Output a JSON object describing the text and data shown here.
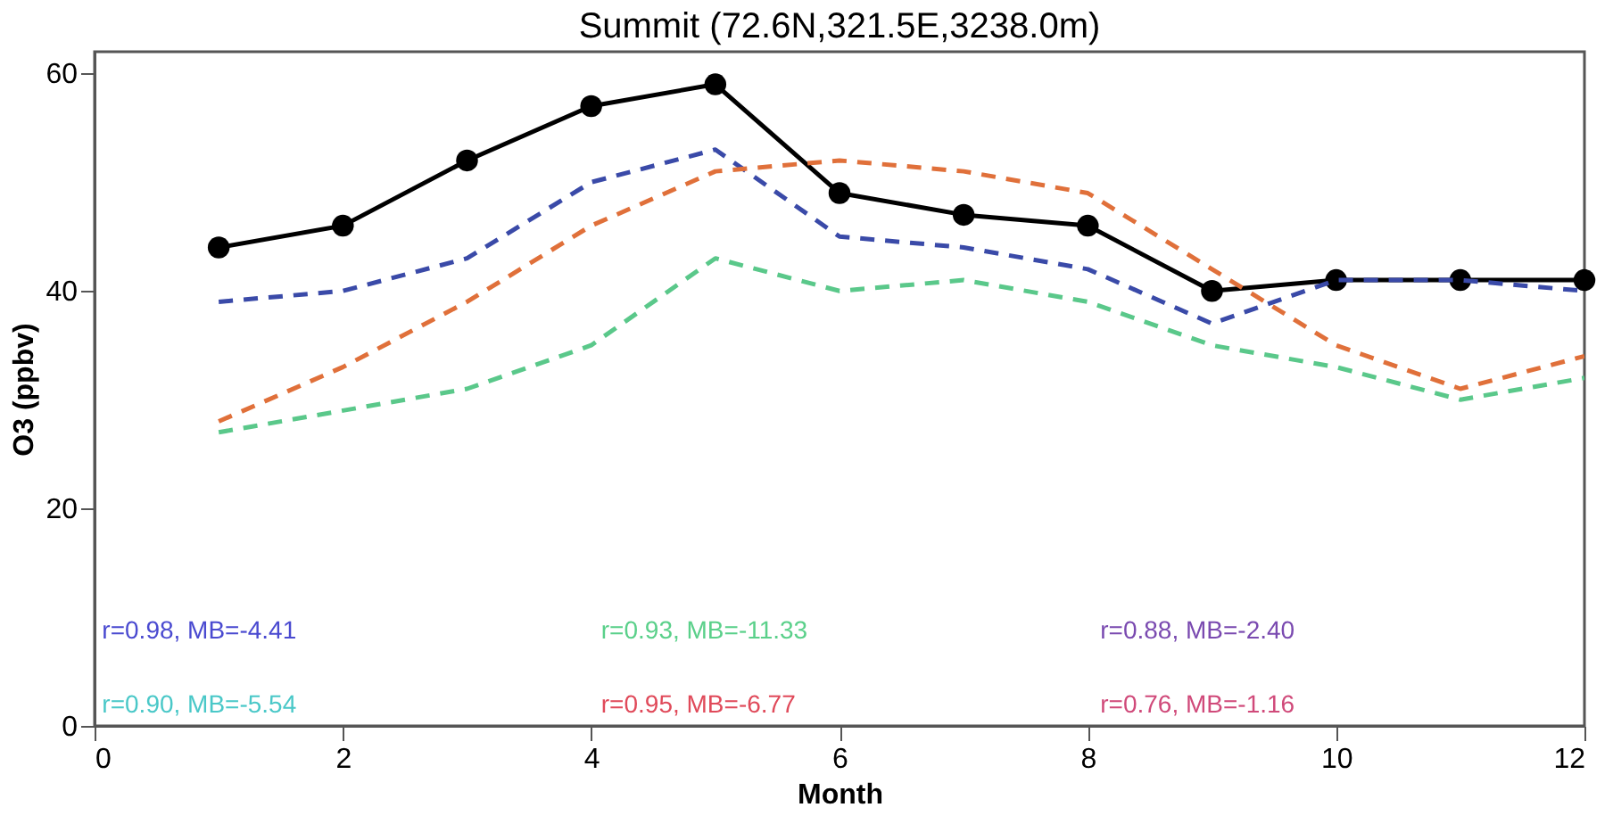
{
  "chart_data": {
    "type": "line",
    "title": "Summit (72.6N,321.5E,3238.0m)",
    "xlabel": "Month",
    "ylabel": "O3 (ppbv)",
    "x": [
      1,
      2,
      3,
      4,
      5,
      6,
      7,
      8,
      9,
      10,
      11,
      12
    ],
    "xlim": [
      0,
      12
    ],
    "xticks": [
      0,
      2,
      4,
      6,
      8,
      10,
      12
    ],
    "ylim": [
      0,
      62
    ],
    "yticks": [
      0,
      20,
      40,
      60
    ],
    "grid": false,
    "series": [
      {
        "color": "#000000",
        "marker": "circle",
        "line_style": "solid",
        "values": [
          44,
          46,
          52,
          57,
          59,
          49,
          47,
          46,
          40,
          41,
          41,
          41
        ]
      },
      {
        "color": "#3a4aa8",
        "marker": "none",
        "line_style": "dashed",
        "values": [
          39,
          40,
          43,
          50,
          53,
          45,
          44,
          42,
          37,
          41,
          41,
          40
        ]
      },
      {
        "color": "#e0703a",
        "marker": "none",
        "line_style": "dashed",
        "values": [
          28,
          33,
          39,
          46,
          51,
          52,
          51,
          49,
          42,
          35,
          31,
          34
        ]
      },
      {
        "color": "#5ac88a",
        "marker": "none",
        "line_style": "dashed",
        "values": [
          27,
          29,
          31,
          35,
          43,
          40,
          41,
          39,
          35,
          33,
          30,
          32
        ]
      }
    ],
    "annotations": [
      "r=0.98, MB=-4.41",
      "r=0.93, MB=-11.33",
      "r=0.88, MB=-2.40",
      "r=0.90, MB=-5.54",
      "r=0.95, MB=-6.77",
      "r=0.76, MB=-1.16"
    ]
  }
}
